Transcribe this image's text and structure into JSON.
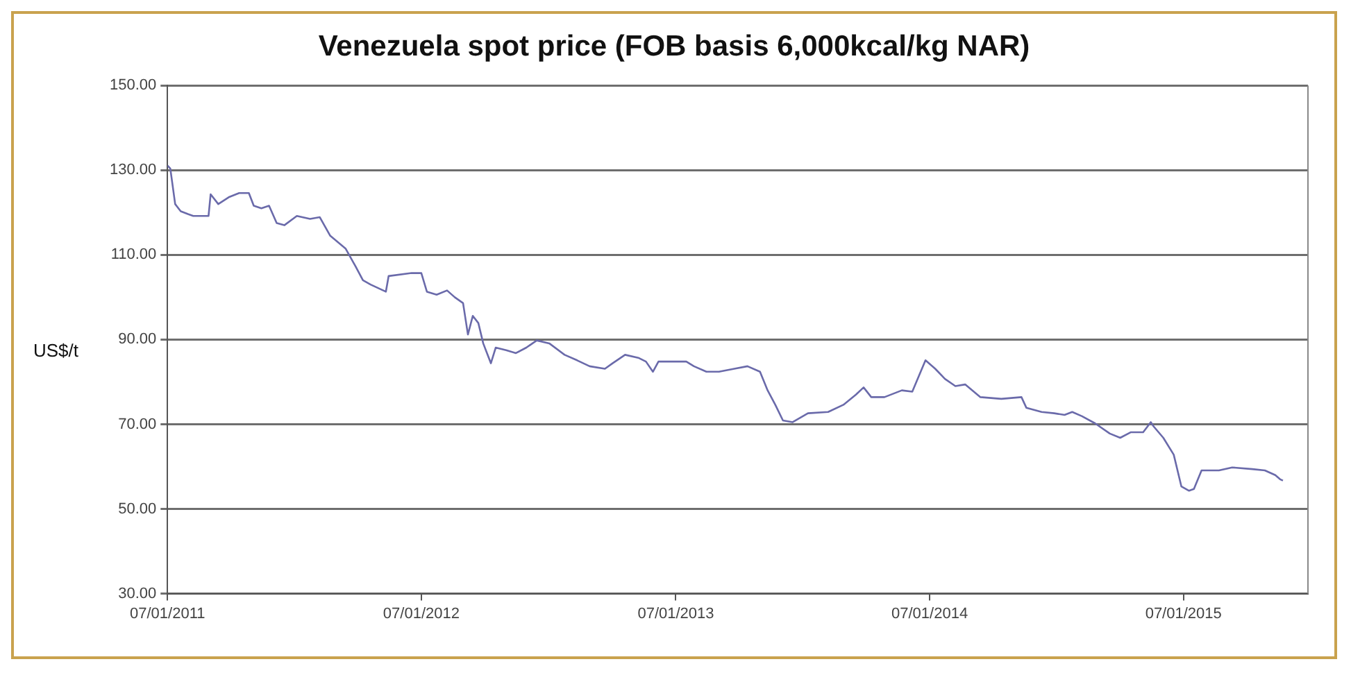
{
  "chart_data": {
    "type": "line",
    "title": "Venezuela spot price (FOB basis 6,000kcal/kg NAR)",
    "ylabel": "US$/t",
    "x": [
      "2011-01-07",
      "2011-01-11",
      "2011-01-18",
      "2011-01-26",
      "2011-02-06",
      "2011-02-13",
      "2011-03-07",
      "2011-03-10",
      "2011-03-21",
      "2011-04-05",
      "2011-04-20",
      "2011-05-04",
      "2011-05-11",
      "2011-05-22",
      "2011-06-02",
      "2011-06-13",
      "2011-06-24",
      "2011-07-12",
      "2011-07-31",
      "2011-08-14",
      "2011-08-29",
      "2011-09-20",
      "2011-10-04",
      "2011-10-15",
      "2011-10-26",
      "2011-11-17",
      "2011-11-21",
      "2011-12-24",
      "2012-01-07",
      "2012-01-15",
      "2012-01-29",
      "2012-02-13",
      "2012-02-24",
      "2012-03-07",
      "2012-03-14",
      "2012-03-21",
      "2012-03-29",
      "2012-04-05",
      "2012-04-16",
      "2012-04-23",
      "2012-05-08",
      "2012-05-22",
      "2012-06-06",
      "2012-06-21",
      "2012-07-09",
      "2012-07-31",
      "2012-08-18",
      "2012-09-05",
      "2012-09-27",
      "2012-10-08",
      "2012-10-26",
      "2012-11-14",
      "2012-11-25",
      "2012-12-05",
      "2012-12-13",
      "2013-01-07",
      "2013-01-22",
      "2013-02-02",
      "2013-02-20",
      "2013-03-10",
      "2013-04-01",
      "2013-04-20",
      "2013-05-08",
      "2013-05-19",
      "2013-05-30",
      "2013-06-10",
      "2013-06-24",
      "2013-07-16",
      "2013-08-14",
      "2013-09-05",
      "2013-09-23",
      "2013-10-04",
      "2013-10-15",
      "2013-11-03",
      "2013-11-28",
      "2013-12-13",
      "2014-01-01",
      "2014-01-15",
      "2014-01-29",
      "2014-02-13",
      "2014-02-27",
      "2014-03-21",
      "2014-04-20",
      "2014-05-19",
      "2014-05-26",
      "2014-06-17",
      "2014-07-05",
      "2014-07-20",
      "2014-07-31",
      "2014-08-14",
      "2014-09-02",
      "2014-09-23",
      "2014-10-08",
      "2014-10-23",
      "2014-11-10",
      "2014-11-21",
      "2014-11-25",
      "2014-12-09",
      "2014-12-24",
      "2015-01-04",
      "2015-01-15",
      "2015-01-22",
      "2015-02-02",
      "2015-02-27",
      "2015-03-18",
      "2015-04-16",
      "2015-05-04",
      "2015-05-19",
      "2015-05-26",
      "2015-05-30"
    ],
    "series": [
      {
        "color": "#6a6aaa",
        "values": [
          131.1,
          130.4,
          122,
          120.3,
          119.6,
          119.2,
          119.2,
          124.3,
          122,
          123.6,
          124.6,
          124.6,
          121.6,
          121,
          121.6,
          117.5,
          117,
          119.2,
          118.5,
          118.9,
          114.5,
          111.5,
          107.4,
          104,
          103,
          101.3,
          105,
          105.7,
          105.7,
          101.3,
          100.6,
          101.6,
          100,
          98.6,
          91.2,
          95.6,
          93.9,
          89.1,
          84.4,
          88.1,
          87.5,
          86.8,
          88.1,
          89.8,
          89.1,
          86.4,
          85.1,
          83.7,
          83.1,
          84.4,
          86.4,
          85.7,
          84.8,
          82.4,
          84.8,
          84.8,
          84.8,
          83.7,
          82.4,
          82.4,
          83.1,
          83.7,
          82.4,
          78,
          74.6,
          70.9,
          70.5,
          72.6,
          72.9,
          74.6,
          77,
          78.7,
          76.4,
          76.4,
          78,
          77.7,
          85.1,
          83.1,
          80.7,
          79,
          79.4,
          76.4,
          76,
          76.4,
          73.9,
          72.9,
          72.6,
          72.2,
          72.9,
          71.9,
          70.2,
          67.8,
          66.8,
          68.1,
          68.1,
          70.5,
          69.5,
          66.8,
          62.8,
          55.3,
          54.3,
          54.7,
          59.1,
          59.1,
          59.8,
          59.4,
          59.1,
          58,
          57,
          56.7
        ]
      }
    ],
    "xlim": [
      "2011-01-07",
      "2015-07-05"
    ],
    "xticks": [
      {
        "value": "2011-01-07",
        "label": "07/01/2011"
      },
      {
        "value": "2012-01-07",
        "label": "07/01/2012"
      },
      {
        "value": "2013-01-07",
        "label": "07/01/2013"
      },
      {
        "value": "2014-01-07",
        "label": "07/01/2014"
      },
      {
        "value": "2015-01-07",
        "label": "07/01/2015"
      }
    ],
    "ylim": [
      30,
      150
    ],
    "yticks": [
      {
        "value": 30,
        "label": "30.00"
      },
      {
        "value": 50,
        "label": "50.00"
      },
      {
        "value": 70,
        "label": "70.00"
      },
      {
        "value": 90,
        "label": "90.00"
      },
      {
        "value": 110,
        "label": "110.00"
      },
      {
        "value": 130,
        "label": "130.00"
      },
      {
        "value": 150,
        "label": "150.00"
      }
    ],
    "grid": "y",
    "legend": false,
    "marker": "none",
    "line_style": "solid"
  }
}
